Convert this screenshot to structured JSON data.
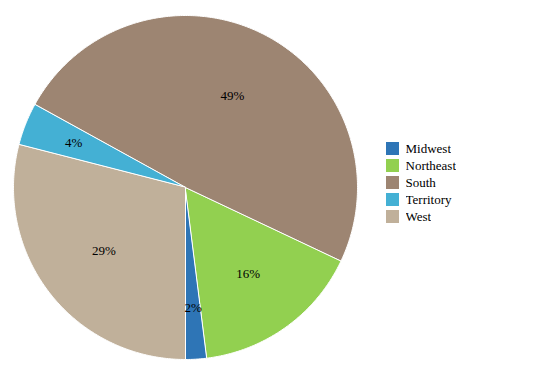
{
  "chart_data": {
    "type": "pie",
    "categories": [
      "Midwest",
      "Northeast",
      "South",
      "Territory",
      "West"
    ],
    "values": [
      2,
      16,
      49,
      4,
      29
    ],
    "value_labels": [
      "2%",
      "16%",
      "49%",
      "4%",
      "29%"
    ],
    "colors": [
      "#2e75b6",
      "#92d050",
      "#9d8572",
      "#44b0d4",
      "#c0b09a"
    ],
    "data_labels": true,
    "legend": "right"
  }
}
